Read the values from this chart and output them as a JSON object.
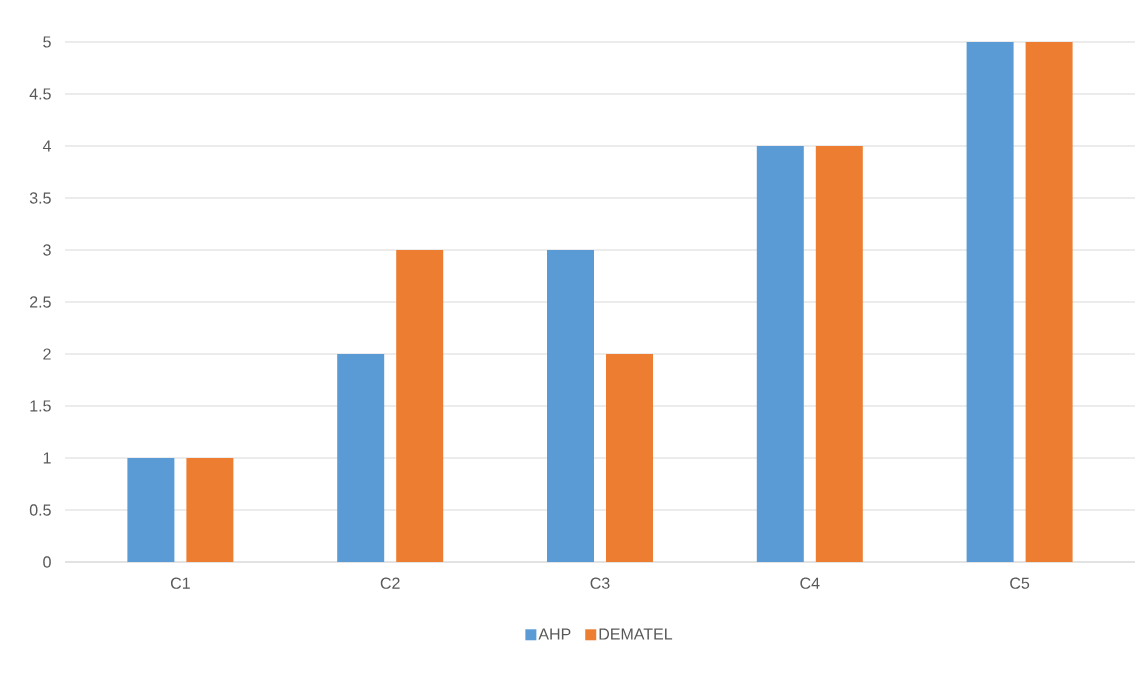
{
  "chart_data": {
    "type": "bar",
    "categories": [
      "C1",
      "C2",
      "C3",
      "C4",
      "C5"
    ],
    "series": [
      {
        "name": "AHP",
        "color": "#5b9bd5",
        "values": [
          1,
          2,
          3,
          4,
          5
        ]
      },
      {
        "name": "DEMATEL",
        "color": "#ed7d31",
        "values": [
          1,
          3,
          2,
          4,
          5
        ]
      }
    ],
    "ylim": [
      0,
      5
    ],
    "yticks": [
      0,
      0.5,
      1,
      1.5,
      2,
      2.5,
      3,
      3.5,
      4,
      4.5,
      5
    ],
    "grid": "y",
    "legend": "bottom"
  }
}
